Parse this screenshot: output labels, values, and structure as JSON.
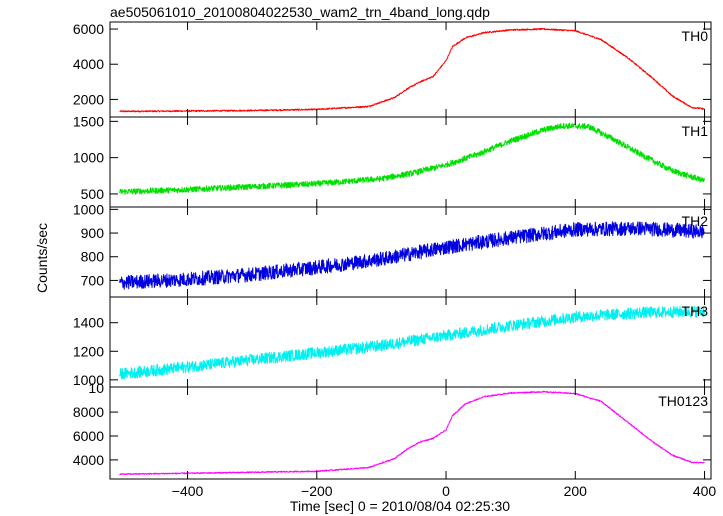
{
  "chart_data": {
    "type": "line",
    "title": "ae505061010_20100804022530_wam2_trn_4band_long.qdp",
    "xlabel": "Time [sec] 0 = 2010/08/04 02:25:30",
    "ylabel": "Counts/sec",
    "xlim": [
      -520,
      410
    ],
    "x_ticks": [
      -400,
      -200,
      0,
      200,
      400
    ],
    "x_tick_labels": [
      "−400",
      "−200",
      "0",
      "200",
      "400"
    ],
    "grid": false,
    "panels": [
      {
        "name": "TH0",
        "color": "#ff0000",
        "ylim": [
          1000,
          6400
        ],
        "y_ticks": [
          2000,
          4000,
          6000
        ],
        "y_tick_labels": [
          "2000",
          "4000",
          "6000"
        ],
        "noise": 40,
        "x": [
          -505,
          -400,
          -300,
          -200,
          -120,
          -80,
          -60,
          -40,
          -20,
          0,
          10,
          30,
          60,
          100,
          150,
          200,
          240,
          280,
          320,
          350,
          380,
          400
        ],
        "y": [
          1320,
          1340,
          1370,
          1430,
          1600,
          2100,
          2600,
          3000,
          3300,
          4200,
          5000,
          5500,
          5800,
          5950,
          6000,
          5900,
          5400,
          4400,
          3200,
          2200,
          1550,
          1450
        ]
      },
      {
        "name": "TH1",
        "color": "#00e000",
        "ylim": [
          320,
          1560
        ],
        "y_ticks": [
          500,
          1000,
          1500
        ],
        "y_tick_labels": [
          "500",
          "1000",
          "1500"
        ],
        "noise": 40,
        "x": [
          -505,
          -400,
          -300,
          -200,
          -100,
          -50,
          0,
          50,
          100,
          150,
          180,
          220,
          260,
          300,
          350,
          400
        ],
        "y": [
          530,
          560,
          600,
          640,
          710,
          790,
          900,
          1050,
          1230,
          1380,
          1440,
          1430,
          1250,
          1050,
          820,
          680
        ]
      },
      {
        "name": "TH2",
        "color": "#0000e0",
        "ylim": [
          630,
          1010
        ],
        "y_ticks": [
          700,
          800,
          900,
          1000
        ],
        "y_tick_labels": [
          "700",
          "800",
          "900",
          "1000"
        ],
        "noise": 30,
        "x": [
          -505,
          -400,
          -300,
          -200,
          -100,
          0,
          100,
          200,
          300,
          400
        ],
        "y": [
          690,
          705,
          725,
          755,
          790,
          840,
          880,
          915,
          920,
          905
        ]
      },
      {
        "name": "TH3",
        "color": "#00f0f0",
        "ylim": [
          950,
          1580
        ],
        "y_ticks": [
          1000,
          1200,
          1400
        ],
        "y_tick_labels": [
          "1000",
          "1200",
          "1400"
        ],
        "noise": 40,
        "x": [
          -505,
          -400,
          -300,
          -200,
          -100,
          0,
          100,
          200,
          300,
          400
        ],
        "y": [
          1040,
          1090,
          1140,
          1190,
          1240,
          1310,
          1380,
          1440,
          1470,
          1480
        ]
      },
      {
        "name": "TH0123",
        "color": "#ff00ff",
        "ylim": [
          2400,
          10100
        ],
        "y_ticks": [
          4000,
          6000,
          8000
        ],
        "y_tick_labels": [
          "4000",
          "6000",
          "8000"
        ],
        "extra_top_label": "10",
        "noise": 50,
        "x": [
          -505,
          -400,
          -300,
          -200,
          -120,
          -80,
          -60,
          -40,
          -20,
          0,
          10,
          30,
          60,
          100,
          150,
          200,
          240,
          280,
          320,
          350,
          380,
          400
        ],
        "y": [
          2800,
          2880,
          2960,
          3050,
          3350,
          4100,
          4900,
          5500,
          5800,
          6500,
          7700,
          8700,
          9300,
          9600,
          9700,
          9550,
          8900,
          7200,
          5500,
          4400,
          3800,
          3750
        ]
      }
    ]
  }
}
